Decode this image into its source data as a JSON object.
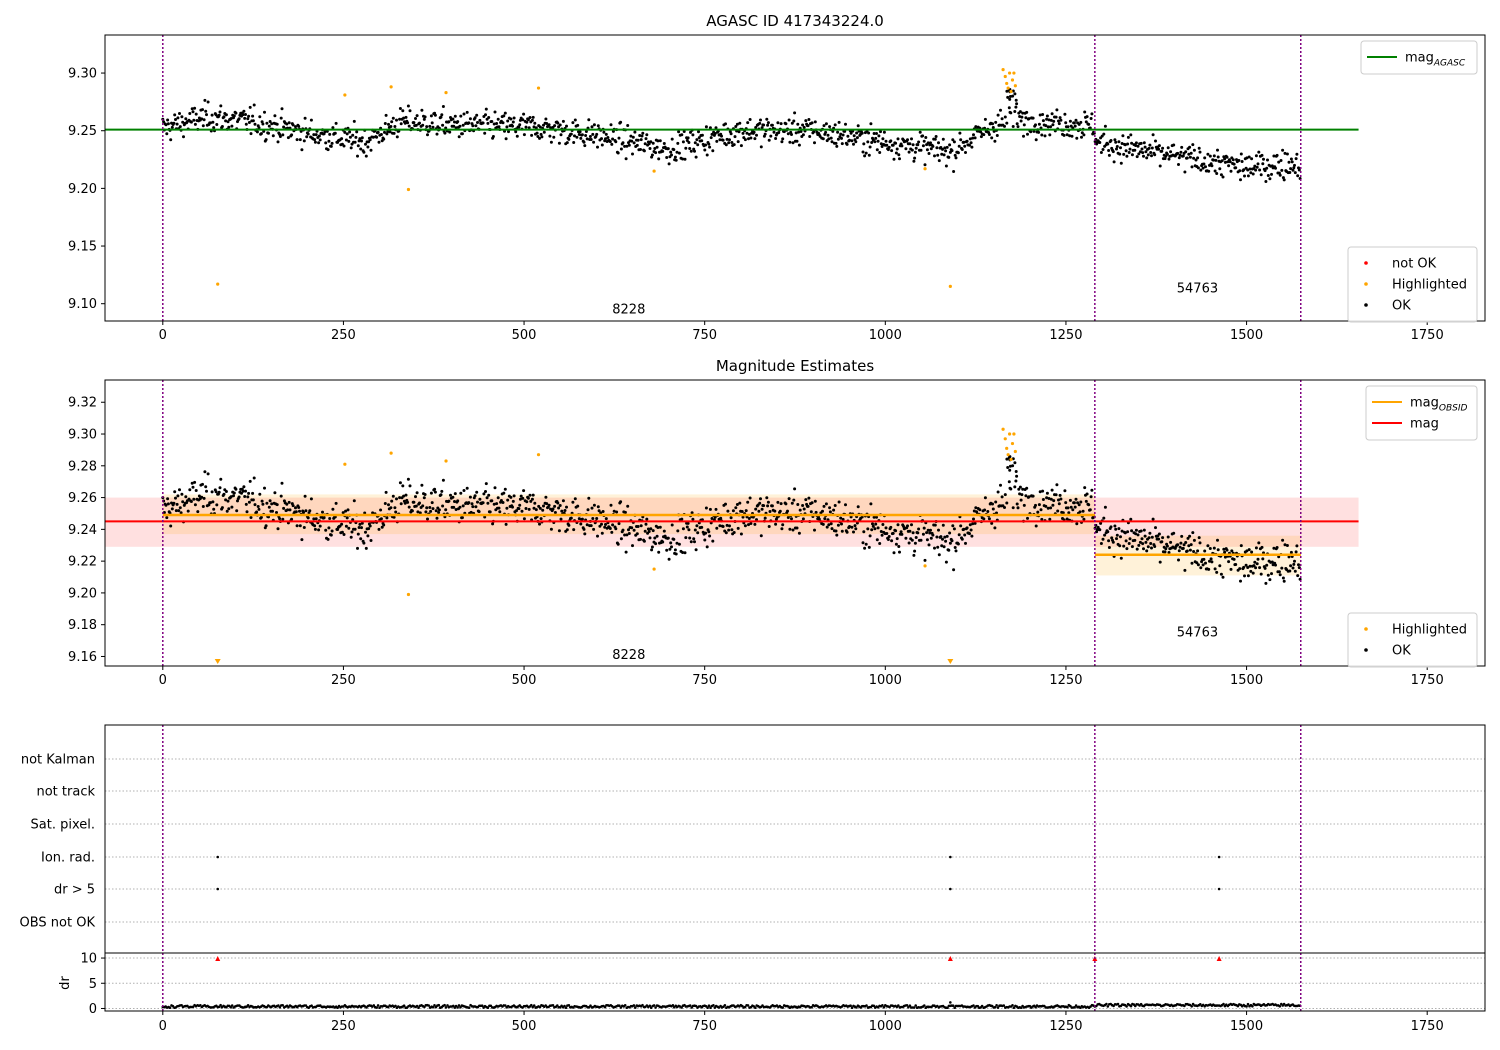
{
  "chart_data": [
    {
      "type": "scatter",
      "title": "AGASC ID 417343224.0",
      "xlim": [
        -80,
        1830
      ],
      "ylim": [
        9.085,
        9.333
      ],
      "xticks": [
        0,
        250,
        500,
        750,
        1000,
        1250,
        1500,
        1750
      ],
      "yticks": [
        9.1,
        9.15,
        9.2,
        9.25,
        9.3
      ],
      "grid": false,
      "obsid_boundaries": [
        0,
        1290,
        1575
      ],
      "obsid_labels": [
        {
          "text": "8228",
          "x": 645,
          "y": 9.095
        },
        {
          "text": "54763",
          "x": 1432,
          "y": 9.113
        }
      ],
      "lines": [
        {
          "name": "mag_AGASC",
          "color": "#008000",
          "y": 9.251,
          "x": [
            -80,
            1655
          ]
        }
      ],
      "highlighted": [
        {
          "x": 76,
          "y": 9.117
        },
        {
          "x": 252,
          "y": 9.281
        },
        {
          "x": 316,
          "y": 9.288
        },
        {
          "x": 340,
          "y": 9.199
        },
        {
          "x": 392,
          "y": 9.283
        },
        {
          "x": 520,
          "y": 9.287
        },
        {
          "x": 680,
          "y": 9.215
        },
        {
          "x": 1055,
          "y": 9.217
        },
        {
          "x": 1090,
          "y": 9.115
        },
        {
          "x": 1163,
          "y": 9.303
        },
        {
          "x": 1166,
          "y": 9.297
        },
        {
          "x": 1168,
          "y": 9.291
        },
        {
          "x": 1170,
          "y": 9.287
        },
        {
          "x": 1172,
          "y": 9.3
        },
        {
          "x": 1174,
          "y": 9.284
        },
        {
          "x": 1176,
          "y": 9.294
        },
        {
          "x": 1178,
          "y": 9.3
        },
        {
          "x": 1180,
          "y": 9.289
        }
      ],
      "ok_trend": [
        {
          "x": 0,
          "y": 9.252
        },
        {
          "x": 60,
          "y": 9.262
        },
        {
          "x": 120,
          "y": 9.258
        },
        {
          "x": 200,
          "y": 9.248
        },
        {
          "x": 280,
          "y": 9.24
        },
        {
          "x": 330,
          "y": 9.258
        },
        {
          "x": 400,
          "y": 9.255
        },
        {
          "x": 520,
          "y": 9.253
        },
        {
          "x": 600,
          "y": 9.246
        },
        {
          "x": 700,
          "y": 9.234
        },
        {
          "x": 800,
          "y": 9.25
        },
        {
          "x": 900,
          "y": 9.25
        },
        {
          "x": 1000,
          "y": 9.24
        },
        {
          "x": 1090,
          "y": 9.232
        },
        {
          "x": 1160,
          "y": 9.258
        },
        {
          "x": 1200,
          "y": 9.259
        },
        {
          "x": 1289,
          "y": 9.254
        },
        {
          "x": 1292,
          "y": 9.24
        },
        {
          "x": 1400,
          "y": 9.228
        },
        {
          "x": 1500,
          "y": 9.218
        },
        {
          "x": 1575,
          "y": 9.222
        }
      ],
      "legends": [
        {
          "position": "top-right",
          "entries": [
            {
              "label": "mag",
              "sub": "AGASC",
              "color": "#008000",
              "kind": "line"
            }
          ]
        },
        {
          "position": "lower-right",
          "entries": [
            {
              "label": "not OK",
              "color": "#ff0000",
              "kind": "dot"
            },
            {
              "label": "Highlighted",
              "color": "#ffa500",
              "kind": "dot"
            },
            {
              "label": "OK",
              "color": "#000000",
              "kind": "dot"
            }
          ]
        }
      ]
    },
    {
      "type": "scatter",
      "title": "Magnitude Estimates",
      "xlim": [
        -80,
        1830
      ],
      "ylim": [
        9.154,
        9.334
      ],
      "xticks": [
        0,
        250,
        500,
        750,
        1000,
        1250,
        1500,
        1750
      ],
      "yticks": [
        9.16,
        9.18,
        9.2,
        9.22,
        9.24,
        9.26,
        9.28,
        9.3,
        9.32
      ],
      "grid": false,
      "obsid_boundaries": [
        0,
        1290,
        1575
      ],
      "obsid_labels": [
        {
          "text": "8228",
          "x": 645,
          "y": 9.161
        },
        {
          "text": "54763",
          "x": 1432,
          "y": 9.175
        }
      ],
      "bands": [
        {
          "color": "#ff0000",
          "opacity": 0.12,
          "x": [
            -80,
            1655
          ],
          "y": [
            9.229,
            9.26
          ]
        },
        {
          "color": "#ffa500",
          "opacity": 0.15,
          "x": [
            0,
            1290
          ],
          "y": [
            9.237,
            9.262
          ]
        },
        {
          "color": "#ffa500",
          "opacity": 0.15,
          "x": [
            1290,
            1575
          ],
          "y": [
            9.211,
            9.236
          ]
        }
      ],
      "lines": [
        {
          "name": "mag_OBSID",
          "color": "#ffa500",
          "segments": [
            {
              "x": [
                0,
                1290
              ],
              "y": 9.249
            },
            {
              "x": [
                1290,
                1575
              ],
              "y": 9.224
            }
          ]
        },
        {
          "name": "mag",
          "color": "#ff0000",
          "y": 9.245,
          "x": [
            -80,
            1655
          ]
        }
      ],
      "offscale_markers": [
        {
          "x": 76
        },
        {
          "x": 1090
        }
      ],
      "legends": [
        {
          "position": "top-right",
          "entries": [
            {
              "label": "mag",
              "sub": "OBSID",
              "color": "#ffa500",
              "kind": "line"
            },
            {
              "label": "mag",
              "color": "#ff0000",
              "kind": "line"
            }
          ]
        },
        {
          "position": "lower-right",
          "entries": [
            {
              "label": "Highlighted",
              "color": "#ffa500",
              "kind": "dot"
            },
            {
              "label": "OK",
              "color": "#000000",
              "kind": "dot"
            }
          ]
        }
      ]
    },
    {
      "type": "scatter",
      "title": "",
      "xlim": [
        -80,
        1830
      ],
      "obsid_boundaries": [
        0,
        1290,
        1575
      ],
      "flag_rows": [
        "not Kalman",
        "not track",
        "Sat. pixel.",
        "Ion. rad.",
        "dr > 5",
        "OBS not OK"
      ],
      "flags": [
        {
          "row": "Ion. rad.",
          "x": [
            76,
            1090,
            1462
          ]
        },
        {
          "row": "dr > 5",
          "x": [
            76,
            1090,
            1462
          ]
        }
      ],
      "dr": {
        "ylabel": "dr",
        "ylim": [
          -0.5,
          11
        ],
        "yticks": [
          0,
          5,
          10
        ],
        "baseline": 0.4,
        "outliers_red": [
          {
            "x": 76,
            "y": 10
          },
          {
            "x": 1090,
            "y": 10
          },
          {
            "x": 1290,
            "y": 10
          },
          {
            "x": 1462,
            "y": 10
          }
        ]
      },
      "xticks": [
        0,
        250,
        500,
        750,
        1000,
        1250,
        1500,
        1750
      ]
    }
  ]
}
